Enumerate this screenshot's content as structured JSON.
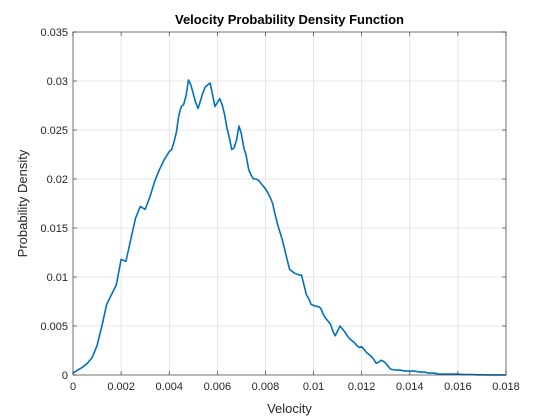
{
  "chart_data": {
    "type": "line",
    "title": "Velocity Probability Density Function",
    "xlabel": "Velocity",
    "ylabel": "Probability Density",
    "xlim": [
      0,
      0.018
    ],
    "ylim": [
      0,
      0.035
    ],
    "grid": true,
    "x_ticks": [
      0,
      0.002,
      0.004,
      0.006,
      0.008,
      0.01,
      0.012,
      0.014,
      0.016,
      0.018
    ],
    "x_tick_labels": [
      "0",
      "0.002",
      "0.004",
      "0.006",
      "0.008",
      "0.01",
      "0.012",
      "0.014",
      "0.016",
      "0.018"
    ],
    "y_ticks": [
      0,
      0.005,
      0.01,
      0.015,
      0.02,
      0.025,
      0.03,
      0.035
    ],
    "y_tick_labels": [
      "0",
      "0.005",
      "0.01",
      "0.015",
      "0.02",
      "0.025",
      "0.03",
      "0.035"
    ],
    "series": [
      {
        "color": "#0072bd",
        "x": [
          0,
          0.0002,
          0.0004,
          0.0006,
          0.0008,
          0.001,
          0.0012,
          0.0014,
          0.0016,
          0.0018,
          0.002,
          0.0022,
          0.0024,
          0.0026,
          0.0028,
          0.003,
          0.0032,
          0.0034,
          0.0036,
          0.0038,
          0.004,
          0.0041,
          0.0042,
          0.0043,
          0.0044,
          0.0045,
          0.0046,
          0.0047,
          0.0048,
          0.0049,
          0.005,
          0.0051,
          0.0052,
          0.0053,
          0.0054,
          0.0055,
          0.0056,
          0.0057,
          0.0058,
          0.0059,
          0.006,
          0.0061,
          0.0062,
          0.0063,
          0.0064,
          0.0065,
          0.0066,
          0.0067,
          0.0068,
          0.0069,
          0.007,
          0.0071,
          0.0072,
          0.0073,
          0.0074,
          0.0075,
          0.0076,
          0.0077,
          0.0078,
          0.0079,
          0.008,
          0.0081,
          0.0082,
          0.0083,
          0.0084,
          0.0085,
          0.0086,
          0.0087,
          0.0088,
          0.0089,
          0.009,
          0.0091,
          0.0092,
          0.0093,
          0.0094,
          0.0095,
          0.0096,
          0.0097,
          0.0098,
          0.0099,
          0.01,
          0.0101,
          0.0102,
          0.0103,
          0.0104,
          0.0105,
          0.0106,
          0.0107,
          0.0108,
          0.0109,
          0.011,
          0.0111,
          0.0112,
          0.0113,
          0.0114,
          0.0115,
          0.0116,
          0.0117,
          0.0118,
          0.0119,
          0.012,
          0.0121,
          0.0122,
          0.0123,
          0.0124,
          0.0125,
          0.0126,
          0.0127,
          0.0128,
          0.0129,
          0.013,
          0.0132,
          0.0134,
          0.0136,
          0.0138,
          0.014,
          0.0142,
          0.0144,
          0.0146,
          0.0148,
          0.015,
          0.0152,
          0.0154,
          0.0156,
          0.0158,
          0.016,
          0.0162,
          0.0164,
          0.0166,
          0.0168,
          0.017,
          0.0172,
          0.0174,
          0.0176,
          0.0178,
          0.018
        ],
        "y": [
          0.0002,
          0.0005,
          0.0008,
          0.0012,
          0.0018,
          0.003,
          0.005,
          0.0072,
          0.0082,
          0.0092,
          0.0118,
          0.0116,
          0.0138,
          0.016,
          0.0172,
          0.0169,
          0.0182,
          0.0198,
          0.021,
          0.022,
          0.0228,
          0.023,
          0.0238,
          0.0248,
          0.0265,
          0.0274,
          0.0276,
          0.0285,
          0.0301,
          0.0296,
          0.0287,
          0.0278,
          0.0272,
          0.028,
          0.0288,
          0.0294,
          0.0296,
          0.0298,
          0.0286,
          0.0274,
          0.0278,
          0.0282,
          0.0276,
          0.0266,
          0.0252,
          0.0242,
          0.023,
          0.0232,
          0.024,
          0.0254,
          0.0246,
          0.0232,
          0.0224,
          0.021,
          0.0204,
          0.02,
          0.02,
          0.0199,
          0.0196,
          0.0193,
          0.019,
          0.0186,
          0.0181,
          0.0175,
          0.0164,
          0.0154,
          0.0146,
          0.0138,
          0.0128,
          0.0118,
          0.0108,
          0.0106,
          0.0104,
          0.0103,
          0.0102,
          0.0102,
          0.0092,
          0.0082,
          0.0078,
          0.0072,
          0.0071,
          0.007,
          0.007,
          0.0068,
          0.0062,
          0.0058,
          0.0055,
          0.0052,
          0.0045,
          0.004,
          0.0045,
          0.005,
          0.0047,
          0.0044,
          0.004,
          0.0037,
          0.0035,
          0.0033,
          0.003,
          0.0028,
          0.0029,
          0.0026,
          0.0023,
          0.0021,
          0.0019,
          0.0016,
          0.0012,
          0.0013,
          0.0015,
          0.0014,
          0.0012,
          0.0006,
          0.0005,
          0.0005,
          0.0004,
          0.0004,
          0.0004,
          0.0003,
          0.0003,
          0.0002,
          0.0002,
          0.0001,
          0.0001,
          0.0001,
          0.0001,
          0.0001,
          5e-05,
          5e-05,
          5e-05,
          2e-05,
          2e-05,
          1e-05,
          1e-05,
          1e-05,
          1e-05,
          0.0
        ]
      }
    ]
  }
}
